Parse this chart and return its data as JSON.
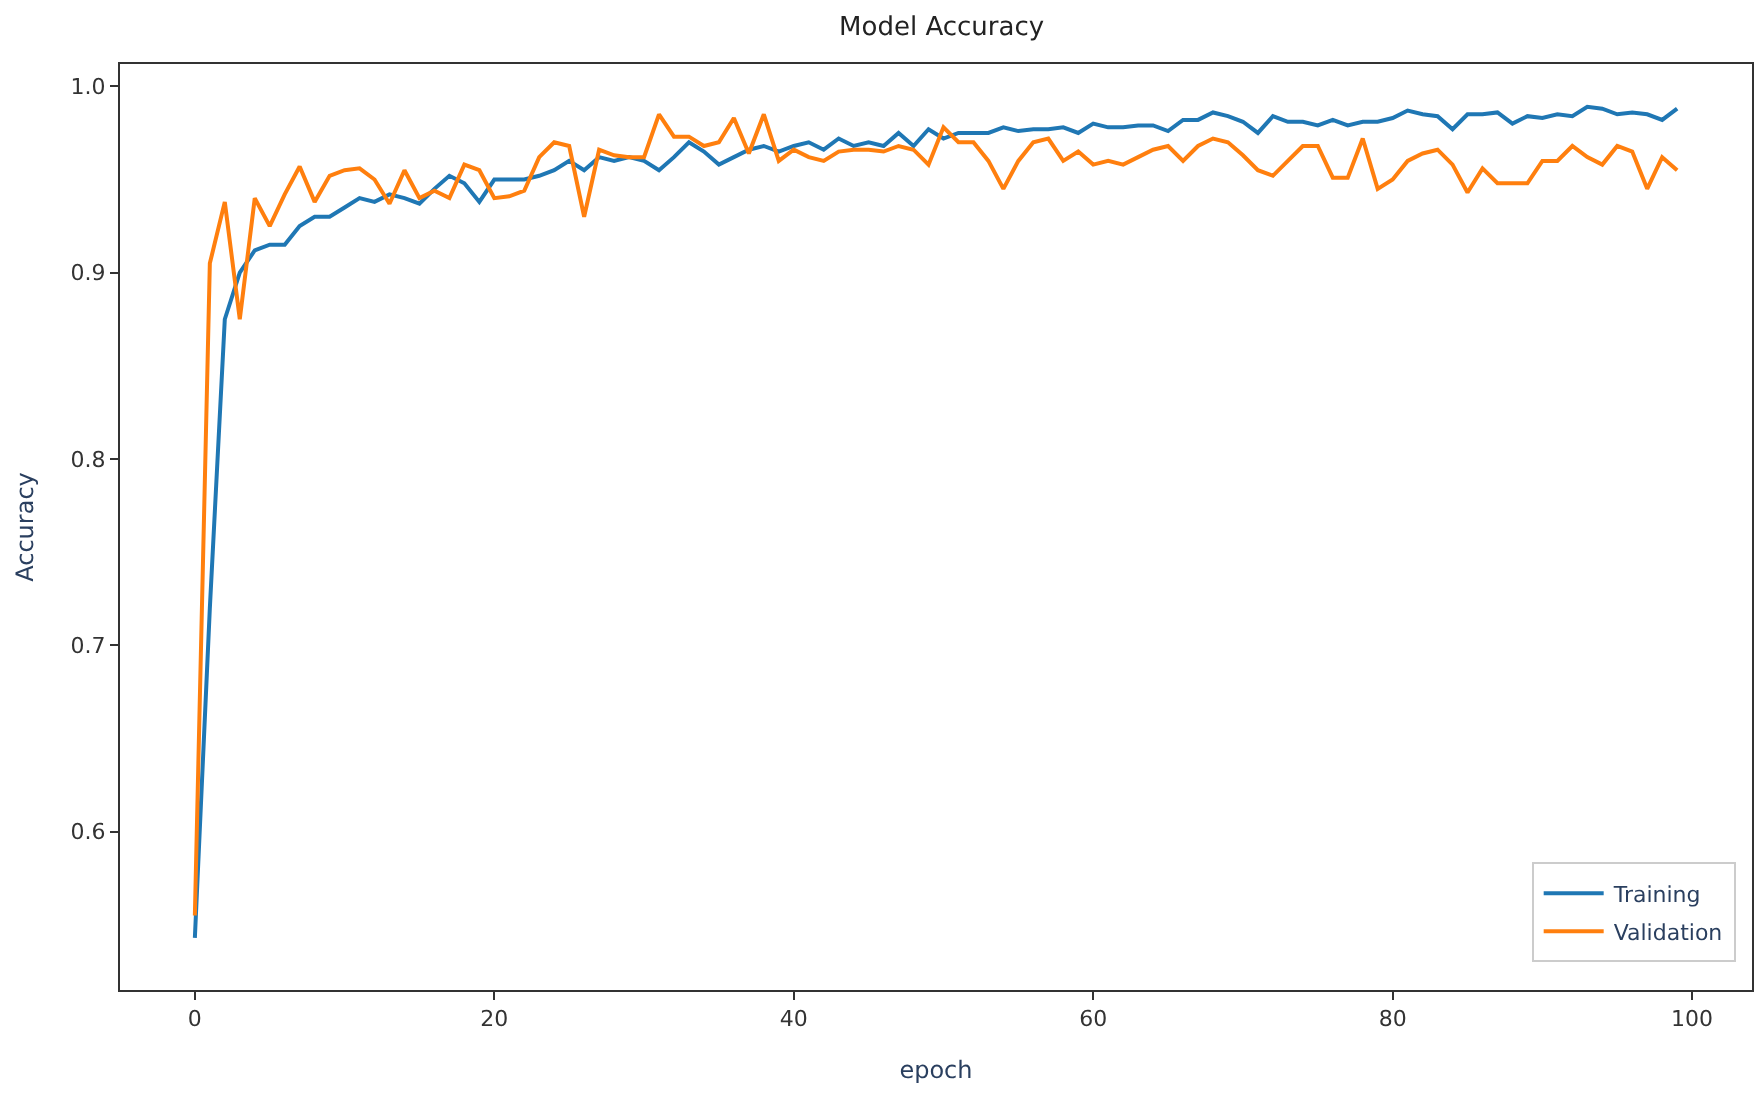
{
  "chart_data": {
    "type": "line",
    "title": "Model Accuracy",
    "xlabel": "epoch",
    "ylabel": "Accuracy",
    "x": [
      0,
      1,
      2,
      3,
      4,
      5,
      6,
      7,
      8,
      9,
      10,
      11,
      12,
      13,
      14,
      15,
      16,
      17,
      18,
      19,
      20,
      21,
      22,
      23,
      24,
      25,
      26,
      27,
      28,
      29,
      30,
      31,
      32,
      33,
      34,
      35,
      36,
      37,
      38,
      39,
      40,
      41,
      42,
      43,
      44,
      45,
      46,
      47,
      48,
      49,
      50,
      51,
      52,
      53,
      54,
      55,
      56,
      57,
      58,
      59,
      60,
      61,
      62,
      63,
      64,
      65,
      66,
      67,
      68,
      69,
      70,
      71,
      72,
      73,
      74,
      75,
      76,
      77,
      78,
      79,
      80,
      81,
      82,
      83,
      84,
      85,
      86,
      87,
      88,
      89,
      90,
      91,
      92,
      93,
      94,
      95,
      96,
      97,
      98,
      99
    ],
    "series": [
      {
        "name": "Training",
        "color": "#1f77b4",
        "values": [
          0.543,
          0.72,
          0.875,
          0.9,
          0.912,
          0.915,
          0.915,
          0.925,
          0.93,
          0.93,
          0.935,
          0.94,
          0.938,
          0.942,
          0.94,
          0.937,
          0.945,
          0.952,
          0.948,
          0.938,
          0.95,
          0.95,
          0.95,
          0.952,
          0.955,
          0.96,
          0.955,
          0.962,
          0.96,
          0.962,
          0.96,
          0.955,
          0.962,
          0.97,
          0.965,
          0.958,
          0.962,
          0.966,
          0.968,
          0.965,
          0.968,
          0.97,
          0.966,
          0.972,
          0.968,
          0.97,
          0.968,
          0.975,
          0.968,
          0.977,
          0.972,
          0.975,
          0.975,
          0.975,
          0.978,
          0.976,
          0.977,
          0.977,
          0.978,
          0.975,
          0.98,
          0.978,
          0.978,
          0.979,
          0.979,
          0.976,
          0.982,
          0.982,
          0.986,
          0.984,
          0.981,
          0.975,
          0.984,
          0.981,
          0.981,
          0.979,
          0.982,
          0.979,
          0.981,
          0.981,
          0.983,
          0.987,
          0.985,
          0.984,
          0.977,
          0.985,
          0.985,
          0.986,
          0.98,
          0.984,
          0.983,
          0.985,
          0.984,
          0.989,
          0.988,
          0.985,
          0.986,
          0.985,
          0.982,
          0.988
        ]
      },
      {
        "name": "Validation",
        "color": "#ff7f0e",
        "values": [
          0.555,
          0.905,
          0.938,
          0.875,
          0.94,
          0.925,
          0.942,
          0.957,
          0.938,
          0.952,
          0.955,
          0.956,
          0.95,
          0.937,
          0.955,
          0.94,
          0.944,
          0.94,
          0.958,
          0.955,
          0.94,
          0.941,
          0.944,
          0.962,
          0.97,
          0.968,
          0.93,
          0.966,
          0.963,
          0.962,
          0.962,
          0.985,
          0.973,
          0.973,
          0.968,
          0.97,
          0.983,
          0.964,
          0.985,
          0.96,
          0.966,
          0.962,
          0.96,
          0.965,
          0.966,
          0.966,
          0.965,
          0.968,
          0.966,
          0.958,
          0.978,
          0.97,
          0.97,
          0.96,
          0.945,
          0.96,
          0.97,
          0.972,
          0.96,
          0.965,
          0.958,
          0.96,
          0.958,
          0.962,
          0.966,
          0.968,
          0.96,
          0.968,
          0.972,
          0.97,
          0.963,
          0.955,
          0.952,
          0.96,
          0.968,
          0.968,
          0.951,
          0.951,
          0.972,
          0.945,
          0.95,
          0.96,
          0.964,
          0.966,
          0.958,
          0.943,
          0.956,
          0.948,
          0.948,
          0.948,
          0.96,
          0.96,
          0.968,
          0.962,
          0.958,
          0.968,
          0.965,
          0.945,
          0.962,
          0.955
        ]
      }
    ],
    "xlim": [
      -5,
      104
    ],
    "xticks": [
      0,
      20,
      40,
      60,
      80,
      100
    ],
    "ylim": [
      0.515,
      1.012
    ],
    "yticks": [
      0.6,
      0.7,
      0.8,
      0.9,
      {
        "value": 1,
        "label": "1.0"
      }
    ],
    "grid": false,
    "legend": "bottom right",
    "marker": "none",
    "line_style": "solid"
  }
}
